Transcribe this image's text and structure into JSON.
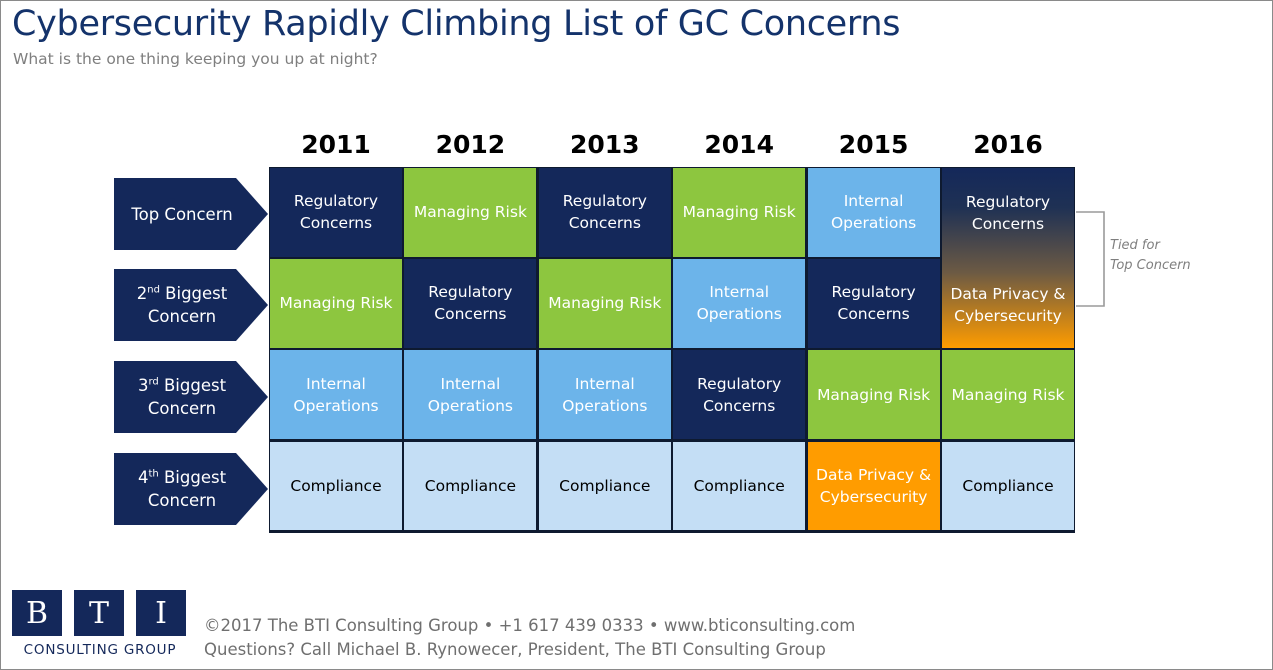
{
  "header": {
    "title": "Cybersecurity Rapidly Climbing List of GC Concerns",
    "subtitle": "What is the one thing keeping you up at night?"
  },
  "years": [
    "2011",
    "2012",
    "2013",
    "2014",
    "2015",
    "2016"
  ],
  "rows": [
    {
      "label_main": "Top Concern",
      "label_sup": "",
      "label_rest": ""
    },
    {
      "label_main": "2",
      "label_sup": "nd",
      "label_rest": " Biggest Concern"
    },
    {
      "label_main": "3",
      "label_sup": "rd",
      "label_rest": " Biggest Concern"
    },
    {
      "label_main": "4",
      "label_sup": "th",
      "label_rest": " Biggest Concern"
    }
  ],
  "cells": [
    [
      "Regulatory Concerns",
      "Managing Risk",
      "Regulatory Concerns",
      "Managing Risk",
      "Internal Operations",
      "Regulatory Concerns"
    ],
    [
      "Managing Risk",
      "Regulatory Concerns",
      "Managing Risk",
      "Internal Operations",
      "Regulatory Concerns",
      "Data Privacy & Cybersecurity"
    ],
    [
      "Internal Operations",
      "Internal Operations",
      "Internal Operations",
      "Regulatory Concerns",
      "Managing Risk",
      "Managing Risk"
    ],
    [
      "Compliance",
      "Compliance",
      "Compliance",
      "Compliance",
      "Data Privacy & Cybersecurity",
      "Compliance"
    ]
  ],
  "cell_colors": [
    [
      "navy",
      "green",
      "navy",
      "green",
      "lblue",
      "grad"
    ],
    [
      "green",
      "navy",
      "green",
      "lblue",
      "navy",
      "grad"
    ],
    [
      "lblue",
      "lblue",
      "lblue",
      "navy",
      "green",
      "green"
    ],
    [
      "pale",
      "pale",
      "pale",
      "pale",
      "orange",
      "pale"
    ]
  ],
  "tied_note": {
    "line1": "Tied for",
    "line2": "Top Concern"
  },
  "logo": {
    "letters": [
      "B",
      "T",
      "I"
    ],
    "name": "CONSULTING GROUP"
  },
  "footer": {
    "line1": "©2017 The BTI Consulting Group  •  +1 617 439 0333  •  www.bticonsulting.com",
    "line2": "Questions? Call Michael B. Rynowecer, President, The BTI Consulting Group"
  },
  "colors": {
    "title": "#14336b",
    "navy": "#14285a",
    "green": "#8dc63f",
    "light_blue": "#6cb4ea",
    "pale_blue": "#c4def5",
    "orange": "#ff9c00"
  }
}
